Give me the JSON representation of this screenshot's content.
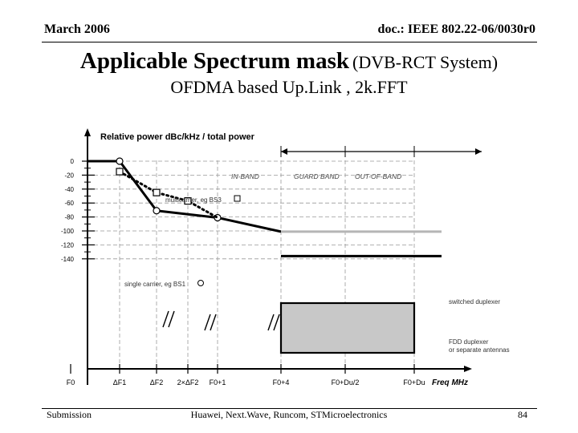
{
  "header": {
    "date": "March 2006",
    "doc": "doc.: IEEE 802.22-06/0030r0"
  },
  "title": {
    "main": "Applicable Spectrum mask",
    "sub": "(DVB-RCT System)"
  },
  "subtitle": "OFDMA based Up.Link , 2k.FFT",
  "footer": {
    "left": "Submission",
    "center": "Huawei, Next.Wave, Runcom, STMicroelectronics",
    "page": "84"
  },
  "chart_data": {
    "type": "line",
    "ylabel": "Relative power dBc/kHz / total power",
    "xlabel": "Freq MHz",
    "x_ticks": [
      "F0",
      "ΔF1",
      "ΔF2",
      "2×ΔF2",
      "F0+1",
      "F0+4",
      "F0+Du/2",
      "F0+Du"
    ],
    "y_ticks": [
      0,
      -20,
      -40,
      -60,
      -80,
      -100,
      -120,
      -140
    ],
    "ylim": [
      -150,
      10
    ],
    "bands": [
      "IN-BAND",
      "GUARD BAND",
      "OUT-OF-BAND"
    ],
    "series": [
      {
        "name": "single carrier, eg BS1",
        "style": "solid",
        "points": [
          [
            "F0",
            0
          ],
          [
            "ΔF1",
            0
          ],
          [
            "ΔF2",
            -71
          ],
          [
            "F0+1",
            -81
          ],
          [
            "F0+4",
            -101
          ]
        ]
      },
      {
        "name": "multicarrier, eg BS3",
        "style": "dotted",
        "points": [
          [
            "ΔF1",
            -15
          ],
          [
            "ΔF2",
            -45
          ],
          [
            "2×ΔF2",
            -57
          ],
          [
            "F0+1",
            -81
          ]
        ]
      },
      {
        "name": "switched duplexer",
        "style": "gray",
        "points": [
          [
            "F0+4",
            -101
          ],
          [
            "F0+Du",
            -101
          ]
        ]
      },
      {
        "name": "FDD duplexer or separate antennas",
        "style": "solid",
        "points": [
          [
            "F0+4",
            -136
          ],
          [
            "F0+Du",
            -136
          ]
        ]
      }
    ],
    "annotations": [
      "multicarrier, eg BS3",
      "single carrier, eg BS1",
      "switched duplexer",
      "FDD duplexer",
      "or separate antennas"
    ]
  }
}
